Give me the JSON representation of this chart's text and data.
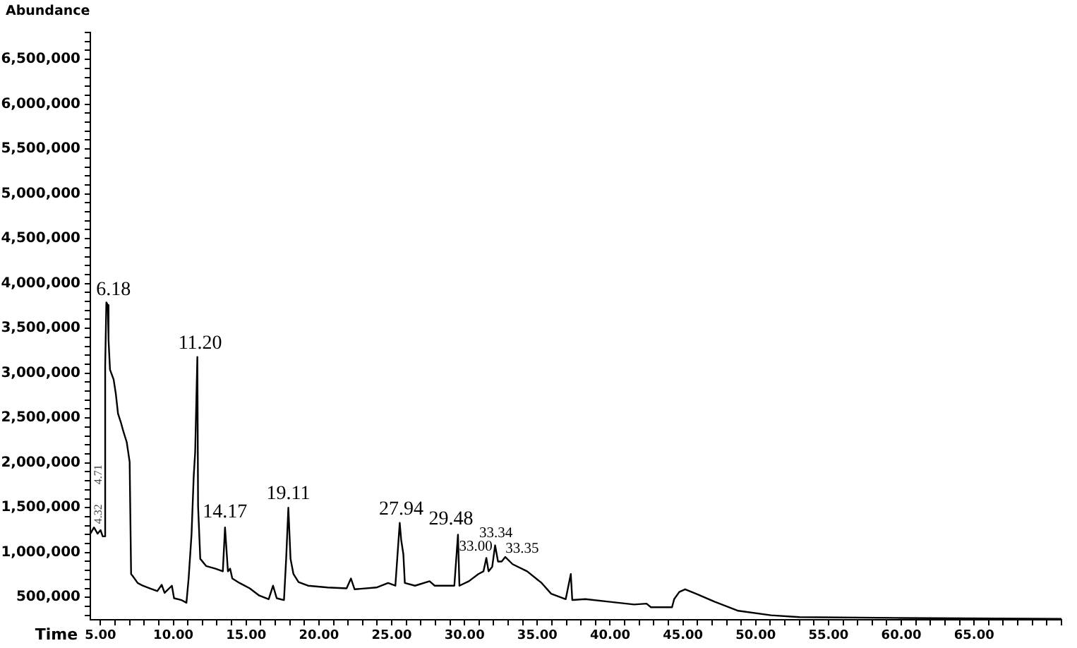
{
  "chart_data": {
    "type": "line",
    "xlabel": "Time",
    "ylabel": "Abundance",
    "color": "#000000",
    "marker": "none",
    "line_style": "solid",
    "x": [
      4.3,
      4.55,
      4.8,
      5.0,
      5.15,
      5.3,
      5.32,
      5.4,
      5.5,
      5.55,
      5.65,
      5.9,
      6.05,
      6.2,
      6.4,
      6.55,
      6.8,
      7.0,
      7.1,
      7.2,
      7.55,
      7.9,
      8.4,
      8.9,
      9.2,
      9.4,
      9.9,
      10.05,
      10.55,
      10.9,
      11.05,
      11.25,
      11.4,
      11.5,
      11.65,
      11.7,
      11.85,
      12.25,
      12.9,
      13.4,
      13.55,
      13.75,
      13.9,
      14.05,
      14.55,
      15.25,
      15.9,
      16.55,
      16.85,
      17.1,
      17.6,
      17.75,
      17.9,
      18.05,
      18.25,
      18.6,
      19.25,
      20.6,
      21.9,
      22.2,
      22.45,
      23.95,
      24.75,
      25.25,
      25.55,
      25.65,
      25.8,
      25.9,
      26.6,
      27.6,
      27.95,
      29.3,
      29.55,
      29.65,
      30.3,
      30.95,
      31.3,
      31.5,
      31.65,
      31.9,
      32.1,
      32.3,
      32.55,
      32.8,
      33.3,
      34.3,
      35.3,
      35.95,
      36.95,
      37.3,
      37.4,
      38.3,
      40.0,
      41.65,
      42.5,
      42.8,
      44.25,
      44.4,
      44.75,
      45.15,
      45.9,
      47.2,
      48.8,
      51.05,
      53.0,
      60,
      71
    ],
    "values": [
      1210000,
      1280000,
      1210000,
      1250000,
      1180000,
      1180000,
      3090000,
      3790000,
      3760000,
      3370000,
      3040000,
      2930000,
      2770000,
      2550000,
      2450000,
      2360000,
      2230000,
      2010000,
      760000,
      740000,
      660000,
      630000,
      600000,
      570000,
      640000,
      550000,
      630000,
      490000,
      470000,
      440000,
      710000,
      1200000,
      1850000,
      2120000,
      3180000,
      1520000,
      930000,
      850000,
      820000,
      790000,
      1280000,
      790000,
      820000,
      710000,
      660000,
      600000,
      520000,
      480000,
      630000,
      490000,
      470000,
      930000,
      1500000,
      930000,
      760000,
      670000,
      630000,
      610000,
      600000,
      710000,
      590000,
      610000,
      660000,
      630000,
      1330000,
      1140000,
      980000,
      660000,
      630000,
      680000,
      630000,
      630000,
      1200000,
      630000,
      680000,
      760000,
      790000,
      940000,
      790000,
      840000,
      1080000,
      900000,
      900000,
      950000,
      870000,
      790000,
      660000,
      540000,
      480000,
      760000,
      470000,
      480000,
      450000,
      420000,
      430000,
      390000,
      390000,
      480000,
      560000,
      590000,
      540000,
      450000,
      350000,
      300000,
      280000,
      270000,
      260000
    ],
    "xlim": [
      4.3,
      71
    ],
    "ylim": [
      250000,
      6800000
    ],
    "xticks": [
      {
        "value": 5,
        "label": "5.00"
      },
      {
        "value": 6,
        "label": null
      },
      {
        "value": 7,
        "label": null
      },
      {
        "value": 8,
        "label": null
      },
      {
        "value": 9,
        "label": null
      },
      {
        "value": 10,
        "label": "10.00"
      },
      {
        "value": 11,
        "label": null
      },
      {
        "value": 12,
        "label": null
      },
      {
        "value": 13,
        "label": null
      },
      {
        "value": 14,
        "label": null
      },
      {
        "value": 15,
        "label": "15.00"
      },
      {
        "value": 16,
        "label": null
      },
      {
        "value": 17,
        "label": null
      },
      {
        "value": 18,
        "label": null
      },
      {
        "value": 19,
        "label": null
      },
      {
        "value": 20,
        "label": "20.00"
      },
      {
        "value": 21,
        "label": null
      },
      {
        "value": 22,
        "label": null
      },
      {
        "value": 23,
        "label": null
      },
      {
        "value": 24,
        "label": null
      },
      {
        "value": 25,
        "label": "25.00"
      },
      {
        "value": 26,
        "label": null
      },
      {
        "value": 27,
        "label": null
      },
      {
        "value": 28,
        "label": null
      },
      {
        "value": 29,
        "label": null
      },
      {
        "value": 30,
        "label": "30.00"
      },
      {
        "value": 31,
        "label": null
      },
      {
        "value": 32,
        "label": null
      },
      {
        "value": 33,
        "label": null
      },
      {
        "value": 34,
        "label": null
      },
      {
        "value": 35,
        "label": "35.00"
      },
      {
        "value": 36,
        "label": null
      },
      {
        "value": 37,
        "label": null
      },
      {
        "value": 38,
        "label": null
      },
      {
        "value": 39,
        "label": null
      },
      {
        "value": 40,
        "label": "40.00"
      },
      {
        "value": 41,
        "label": null
      },
      {
        "value": 42,
        "label": null
      },
      {
        "value": 43,
        "label": null
      },
      {
        "value": 44,
        "label": null
      },
      {
        "value": 45,
        "label": "45.00"
      },
      {
        "value": 46,
        "label": null
      },
      {
        "value": 47,
        "label": null
      },
      {
        "value": 48,
        "label": null
      },
      {
        "value": 49,
        "label": null
      },
      {
        "value": 50,
        "label": "50.00"
      },
      {
        "value": 51,
        "label": null
      },
      {
        "value": 52,
        "label": null
      },
      {
        "value": 53,
        "label": null
      },
      {
        "value": 54,
        "label": null
      },
      {
        "value": 55,
        "label": "55.00"
      },
      {
        "value": 56,
        "label": null
      },
      {
        "value": 57,
        "label": null
      },
      {
        "value": 58,
        "label": null
      },
      {
        "value": 59,
        "label": null
      },
      {
        "value": 60,
        "label": "60.00"
      },
      {
        "value": 61,
        "label": null
      },
      {
        "value": 62,
        "label": null
      },
      {
        "value": 63,
        "label": null
      },
      {
        "value": 64,
        "label": null
      },
      {
        "value": 65,
        "label": "65.00"
      },
      {
        "value": 66,
        "label": null
      },
      {
        "value": 67,
        "label": null
      },
      {
        "value": 68,
        "label": null
      },
      {
        "value": 69,
        "label": null
      },
      {
        "value": 70,
        "label": null
      },
      {
        "value": 71,
        "label": null
      }
    ],
    "yticks": [
      {
        "value": 300000,
        "label": null
      },
      {
        "value": 400000,
        "label": null
      },
      {
        "value": 500000,
        "label": "500,000"
      },
      {
        "value": 600000,
        "label": null
      },
      {
        "value": 700000,
        "label": null
      },
      {
        "value": 800000,
        "label": null
      },
      {
        "value": 900000,
        "label": null
      },
      {
        "value": 1000000,
        "label": "1,000,000"
      },
      {
        "value": 1100000,
        "label": null
      },
      {
        "value": 1200000,
        "label": null
      },
      {
        "value": 1300000,
        "label": null
      },
      {
        "value": 1400000,
        "label": null
      },
      {
        "value": 1500000,
        "label": "1,500,000"
      },
      {
        "value": 1600000,
        "label": null
      },
      {
        "value": 1700000,
        "label": null
      },
      {
        "value": 1800000,
        "label": null
      },
      {
        "value": 1900000,
        "label": null
      },
      {
        "value": 2000000,
        "label": "2,000,000"
      },
      {
        "value": 2100000,
        "label": null
      },
      {
        "value": 2200000,
        "label": null
      },
      {
        "value": 2300000,
        "label": null
      },
      {
        "value": 2400000,
        "label": null
      },
      {
        "value": 2500000,
        "label": "2,500,000"
      },
      {
        "value": 2600000,
        "label": null
      },
      {
        "value": 2700000,
        "label": null
      },
      {
        "value": 2800000,
        "label": null
      },
      {
        "value": 2900000,
        "label": null
      },
      {
        "value": 3000000,
        "label": "3,000,000"
      },
      {
        "value": 3100000,
        "label": null
      },
      {
        "value": 3200000,
        "label": null
      },
      {
        "value": 3300000,
        "label": null
      },
      {
        "value": 3400000,
        "label": null
      },
      {
        "value": 3500000,
        "label": "3,500,000"
      },
      {
        "value": 3600000,
        "label": null
      },
      {
        "value": 3700000,
        "label": null
      },
      {
        "value": 3800000,
        "label": null
      },
      {
        "value": 3900000,
        "label": null
      },
      {
        "value": 4000000,
        "label": "4,000,000"
      },
      {
        "value": 4100000,
        "label": null
      },
      {
        "value": 4200000,
        "label": null
      },
      {
        "value": 4300000,
        "label": null
      },
      {
        "value": 4400000,
        "label": null
      },
      {
        "value": 4500000,
        "label": "4,500,000"
      },
      {
        "value": 4600000,
        "label": null
      },
      {
        "value": 4700000,
        "label": null
      },
      {
        "value": 4800000,
        "label": null
      },
      {
        "value": 4900000,
        "label": null
      },
      {
        "value": 5000000,
        "label": "5,000,000"
      },
      {
        "value": 5100000,
        "label": null
      },
      {
        "value": 5200000,
        "label": null
      },
      {
        "value": 5300000,
        "label": null
      },
      {
        "value": 5400000,
        "label": null
      },
      {
        "value": 5500000,
        "label": "5,500,000"
      },
      {
        "value": 5600000,
        "label": null
      },
      {
        "value": 5700000,
        "label": null
      },
      {
        "value": 5800000,
        "label": null
      },
      {
        "value": 5900000,
        "label": null
      },
      {
        "value": 6000000,
        "label": "6,000,000"
      },
      {
        "value": 6100000,
        "label": null
      },
      {
        "value": 6200000,
        "label": null
      },
      {
        "value": 6300000,
        "label": null
      },
      {
        "value": 6400000,
        "label": null
      },
      {
        "value": 6500000,
        "label": "6,500,000"
      },
      {
        "value": 6600000,
        "label": null
      },
      {
        "value": 6700000,
        "label": null
      },
      {
        "value": 6800000,
        "label": null
      }
    ],
    "annotations": [
      {
        "text": "4.32",
        "x": 4.55,
        "y": 1280000
      },
      {
        "text": "4.71",
        "x": 5.31,
        "y": 1870000
      },
      {
        "text": "6.18",
        "x": 5.4,
        "y": 3790000
      },
      {
        "text": "11.20",
        "x": 11.65,
        "y": 3180000
      },
      {
        "text": "14.17",
        "x": 13.55,
        "y": 1280000
      },
      {
        "text": "19.11",
        "x": 17.9,
        "y": 1500000
      },
      {
        "text": "27.94",
        "x": 25.55,
        "y": 1330000
      },
      {
        "text": "29.48",
        "x": 29.55,
        "y": 1200000
      },
      {
        "text": "33.00",
        "x": 31.5,
        "y": 940000
      },
      {
        "text": "33.34",
        "x": 32.1,
        "y": 1080000
      },
      {
        "text": "33.35",
        "x": 32.8,
        "y": 950000
      }
    ]
  }
}
